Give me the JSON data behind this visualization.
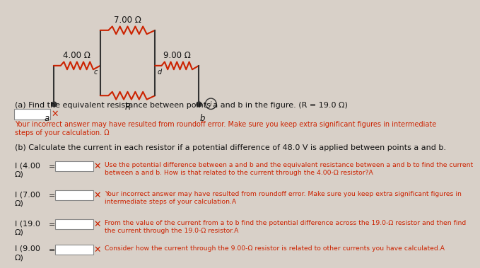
{
  "bg_color": "#d8d0c8",
  "circuit_color": "#cc2200",
  "wire_color": "#333333",
  "text_color": "#111111",
  "title_text": "(a) Find the equivalent resistance between points a and b in the figure. (R = 19.0 Ω)",
  "answer_a_hint": "Your incorrect answer may have resulted from roundoff error. Make sure you keep extra significant figures in intermediate\nsteps of your calculation. Ω",
  "part_b_text": "(b) Calculate the current in each resistor if a potential difference of 48.0 V is applied between points a and b.",
  "I_400_label": "I (4.00\nΩ)",
  "I_400_hint": "Use the potential difference between a and b and the equivalent resistance between a and b to find the current\nbetween a and b. How is that related to the current through the 4.00-Ω resistor?A",
  "I_700_label": "I (7.00\nΩ)",
  "I_700_hint": "Your incorrect answer may have resulted from roundoff error. Make sure you keep extra significant figures in\nintermediate steps of your calculation.A",
  "I_190_label": "I (19.0\nΩ)",
  "I_190_hint": "From the value of the current from a to b find the potential difference across the 19.0-Ω resistor and then find\nthe current through the 19.0-Ω resistor.A",
  "I_900_label": "I (9.00\nΩ)",
  "I_900_hint": "Consider how the current through the 9.00-Ω resistor is related to other currents you have calculated.A",
  "font_size_body": 8.0,
  "font_size_small": 7.0,
  "font_size_label": 8.5,
  "font_size_node": 8.5
}
